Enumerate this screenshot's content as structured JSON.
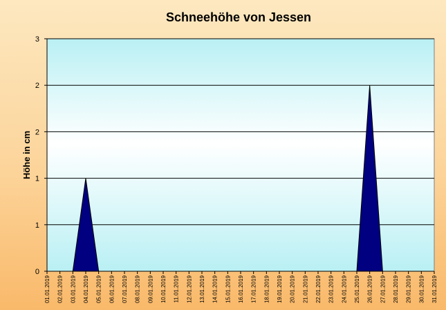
{
  "chart_data": {
    "type": "area",
    "title": "Schneehöhe von Jessen",
    "xlabel": "",
    "ylabel": "Höhe in cm",
    "ylim": [
      0,
      2.5
    ],
    "yticks": [
      0,
      0.5,
      1,
      1.5,
      2,
      2.5
    ],
    "ytick_labels": [
      "0",
      "1",
      "1",
      "2",
      "2",
      "3"
    ],
    "grid": true,
    "categories": [
      "01.01.2019",
      "02.01.2019",
      "03.01.2019",
      "04.01.2019",
      "05.01.2019",
      "06.01.2019",
      "07.01.2019",
      "08.01.2019",
      "09.01.2019",
      "10.01.2019",
      "11.01.2019",
      "12.01.2019",
      "13.01.2019",
      "14.01.2019",
      "15.01.2019",
      "16.01.2019",
      "17.01.2019",
      "18.01.2019",
      "19.01.2019",
      "20.01.2019",
      "21.01.2019",
      "22.01.2019",
      "23.01.2019",
      "24.01.2019",
      "25.01.2019",
      "26.01.2019",
      "27.01.2019",
      "28.01.2019",
      "29.01.2019",
      "30.01.2019",
      "31.01.2019"
    ],
    "series": [
      {
        "values": [
          0,
          0,
          0,
          1,
          0,
          0,
          0,
          0,
          0,
          0,
          0,
          0,
          0,
          0,
          0,
          0,
          0,
          0,
          0,
          0,
          0,
          0,
          0,
          0,
          0,
          2,
          0,
          0,
          0,
          0,
          0
        ],
        "color": "#000080"
      }
    ]
  }
}
